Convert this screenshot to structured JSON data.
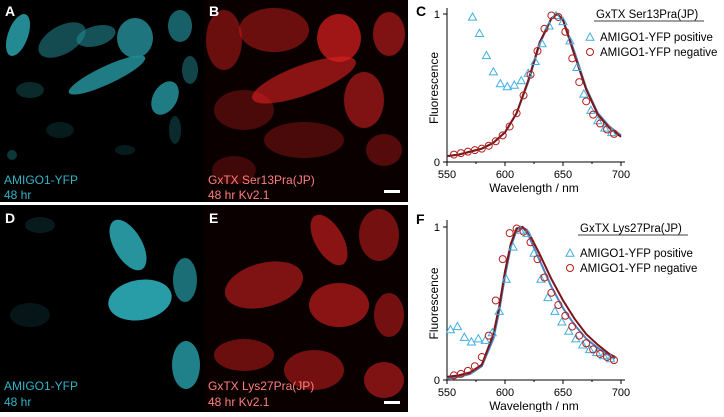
{
  "figure": {
    "panels": {
      "A": {
        "letter": "A",
        "line1": "AMIGO1-YFP",
        "line2": "48 hr",
        "color": "#33b3c8"
      },
      "B": {
        "letter": "B",
        "line1": "GxTX Ser13Pra(JP)",
        "line2": "48 hr Kv2.1",
        "color": "#ff7f7f"
      },
      "D": {
        "letter": "D",
        "line1": "AMIGO1-YFP",
        "line2": "48 hr",
        "color": "#33b3c8"
      },
      "E": {
        "letter": "E",
        "line1": "GxTX Lys27Pra(JP)",
        "line2": "48 hr Kv2.1",
        "color": "#ff7f7f"
      }
    },
    "colors": {
      "cyan_channel": "#2fb8c4",
      "red_channel": "#e02020",
      "positive_marker": "#41afe0",
      "negative_marker": "#b0201c",
      "positive_fit": "#4d7fc0",
      "negative_fit": "#7a1518"
    }
  },
  "chart_data": [
    {
      "panel": "C",
      "type": "scatter",
      "title": "GxTX Ser13Pra(JP)",
      "xlabel": "Wavelength / nm",
      "ylabel": "Fluorescence",
      "xlim": [
        550,
        700
      ],
      "ylim": [
        0,
        1
      ],
      "xticks": [
        "550",
        "600",
        "650",
        "700"
      ],
      "yticks": [
        "0",
        "1"
      ],
      "legend_position": "top-right",
      "series": [
        {
          "name": "AMIGO1-YFP positive",
          "marker": "triangle",
          "x": [
            572,
            578,
            584,
            590,
            596,
            602,
            608,
            614,
            620,
            626,
            632,
            638,
            644,
            650,
            656,
            662,
            668,
            674,
            680,
            686,
            692
          ],
          "y": [
            0.98,
            0.87,
            0.72,
            0.61,
            0.53,
            0.51,
            0.52,
            0.55,
            0.6,
            0.68,
            0.8,
            0.92,
            0.99,
            0.95,
            0.82,
            0.64,
            0.46,
            0.35,
            0.28,
            0.23,
            0.2
          ]
        },
        {
          "name": "AMIGO1-YFP negative",
          "marker": "circle",
          "x": [
            556,
            562,
            568,
            574,
            580,
            586,
            592,
            598,
            604,
            610,
            616,
            622,
            628,
            634,
            640,
            646,
            652,
            658,
            664,
            670,
            676,
            682,
            688,
            694
          ],
          "y": [
            0.05,
            0.06,
            0.07,
            0.08,
            0.09,
            0.11,
            0.14,
            0.18,
            0.24,
            0.33,
            0.45,
            0.59,
            0.75,
            0.9,
            0.99,
            0.98,
            0.88,
            0.7,
            0.54,
            0.41,
            0.32,
            0.26,
            0.22,
            0.19
          ]
        }
      ],
      "fits": [
        {
          "x": [
            550,
            560,
            570,
            580,
            590,
            600,
            610,
            620,
            630,
            640,
            645,
            650,
            660,
            670,
            680,
            690,
            700
          ],
          "y": [
            0.04,
            0.05,
            0.07,
            0.09,
            0.13,
            0.2,
            0.33,
            0.54,
            0.8,
            0.97,
            1.0,
            0.96,
            0.74,
            0.5,
            0.33,
            0.24,
            0.18
          ]
        },
        {
          "x": [
            550,
            560,
            570,
            580,
            590,
            600,
            610,
            620,
            630,
            640,
            645,
            650,
            660,
            670,
            680,
            690,
            700
          ],
          "y": [
            0.04,
            0.05,
            0.07,
            0.09,
            0.13,
            0.2,
            0.33,
            0.55,
            0.81,
            0.97,
            1.0,
            0.96,
            0.72,
            0.49,
            0.32,
            0.23,
            0.17
          ]
        }
      ]
    },
    {
      "panel": "F",
      "type": "scatter",
      "title": "GxTX Lys27Pra(JP)",
      "xlabel": "Wavelength / nm",
      "ylabel": "Fluorescence",
      "xlim": [
        550,
        700
      ],
      "ylim": [
        0,
        1
      ],
      "xticks": [
        "550",
        "600",
        "650",
        "700"
      ],
      "yticks": [
        "0",
        "1"
      ],
      "legend_position": "top-right",
      "series": [
        {
          "name": "AMIGO1-YFP positive",
          "marker": "triangle",
          "x": [
            553,
            559,
            565,
            571,
            577,
            583,
            589,
            595,
            601,
            607,
            613,
            619,
            625,
            631,
            637,
            643,
            649,
            655,
            661,
            667,
            673,
            679,
            685,
            691
          ],
          "y": [
            0.33,
            0.35,
            0.28,
            0.25,
            0.27,
            0.26,
            0.31,
            0.45,
            0.66,
            0.87,
            0.98,
            0.96,
            0.83,
            0.66,
            0.54,
            0.45,
            0.38,
            0.32,
            0.27,
            0.23,
            0.2,
            0.18,
            0.16,
            0.14
          ]
        },
        {
          "name": "AMIGO1-YFP negative",
          "marker": "circle",
          "x": [
            556,
            562,
            568,
            574,
            580,
            586,
            592,
            598,
            604,
            610,
            616,
            622,
            628,
            634,
            640,
            646,
            652,
            658,
            664,
            670,
            676,
            682,
            688,
            694
          ],
          "y": [
            0.03,
            0.04,
            0.06,
            0.09,
            0.15,
            0.29,
            0.52,
            0.79,
            0.96,
            0.99,
            0.97,
            0.9,
            0.79,
            0.67,
            0.57,
            0.49,
            0.42,
            0.35,
            0.29,
            0.24,
            0.2,
            0.17,
            0.15,
            0.13
          ]
        }
      ],
      "fits": [
        {
          "x": [
            550,
            560,
            570,
            580,
            590,
            595,
            600,
            605,
            610,
            615,
            620,
            630,
            640,
            650,
            660,
            670,
            680,
            690,
            695
          ],
          "y": [
            0.01,
            0.02,
            0.04,
            0.09,
            0.27,
            0.45,
            0.68,
            0.87,
            0.98,
            1.0,
            0.95,
            0.78,
            0.61,
            0.47,
            0.36,
            0.27,
            0.21,
            0.16,
            0.14
          ]
        },
        {
          "x": [
            550,
            560,
            570,
            580,
            590,
            595,
            600,
            605,
            610,
            615,
            620,
            630,
            640,
            650,
            660,
            670,
            680,
            690,
            695
          ],
          "y": [
            0.02,
            0.03,
            0.05,
            0.1,
            0.3,
            0.48,
            0.71,
            0.89,
            0.99,
            1.0,
            0.97,
            0.82,
            0.66,
            0.52,
            0.4,
            0.3,
            0.23,
            0.17,
            0.15
          ]
        }
      ]
    }
  ]
}
